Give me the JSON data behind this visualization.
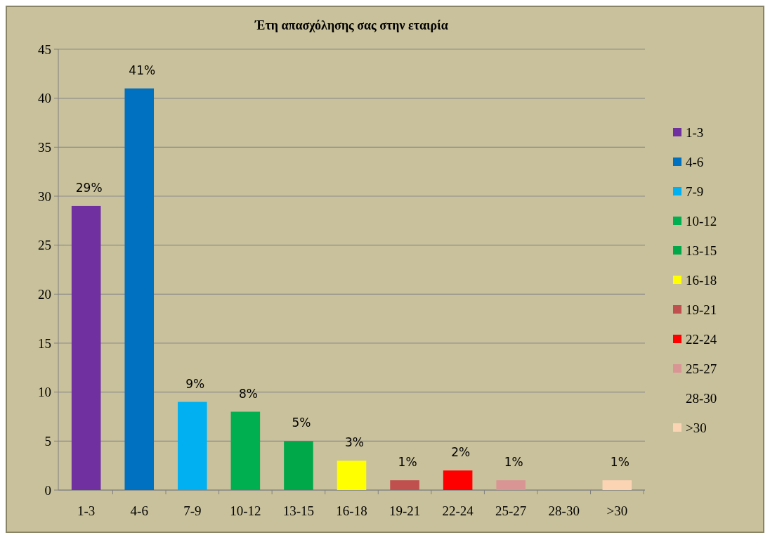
{
  "chart_data": {
    "type": "bar",
    "title": "Έτη απασχόλησης σας στην εταιρία",
    "categories": [
      "1-3",
      "4-6",
      "7-9",
      "10-12",
      "13-15",
      "16-18",
      "19-21",
      "22-24",
      "25-27",
      "28-30",
      ">30"
    ],
    "series": [
      {
        "name": "1-3",
        "color": "#7030a0",
        "values": [
          29,
          null,
          null,
          null,
          null,
          null,
          null,
          null,
          null,
          null,
          null
        ],
        "value_labels": [
          "29%",
          null,
          null,
          null,
          null,
          null,
          null,
          null,
          null,
          null,
          null
        ]
      },
      {
        "name": "4-6",
        "color": "#0070c0",
        "values": [
          null,
          41,
          null,
          null,
          null,
          null,
          null,
          null,
          null,
          null,
          null
        ],
        "value_labels": [
          null,
          "41%",
          null,
          null,
          null,
          null,
          null,
          null,
          null,
          null,
          null
        ]
      },
      {
        "name": "7-9",
        "color": "#00b0f0",
        "values": [
          null,
          null,
          9,
          null,
          null,
          null,
          null,
          null,
          null,
          null,
          null
        ],
        "value_labels": [
          null,
          null,
          "9%",
          null,
          null,
          null,
          null,
          null,
          null,
          null,
          null
        ]
      },
      {
        "name": "10-12",
        "color": "#00b050",
        "values": [
          null,
          null,
          null,
          8,
          null,
          null,
          null,
          null,
          null,
          null,
          null
        ],
        "value_labels": [
          null,
          null,
          null,
          "8%",
          null,
          null,
          null,
          null,
          null,
          null,
          null
        ]
      },
      {
        "name": "13-15",
        "color": "#00a84a",
        "values": [
          null,
          null,
          null,
          null,
          5,
          null,
          null,
          null,
          null,
          null,
          null
        ],
        "value_labels": [
          null,
          null,
          null,
          null,
          "5%",
          null,
          null,
          null,
          null,
          null,
          null
        ]
      },
      {
        "name": "16-18",
        "color": "#ffff00",
        "values": [
          null,
          null,
          null,
          null,
          null,
          3,
          null,
          null,
          null,
          null,
          null
        ],
        "value_labels": [
          null,
          null,
          null,
          null,
          null,
          "3%",
          null,
          null,
          null,
          null,
          null
        ]
      },
      {
        "name": "19-21",
        "color": "#c0504d",
        "values": [
          null,
          null,
          null,
          null,
          null,
          null,
          1,
          null,
          null,
          null,
          null
        ],
        "value_labels": [
          null,
          null,
          null,
          null,
          null,
          null,
          "1%",
          null,
          null,
          null,
          null
        ]
      },
      {
        "name": "22-24",
        "color": "#ff0000",
        "values": [
          null,
          null,
          null,
          null,
          null,
          null,
          null,
          2,
          null,
          null,
          null
        ],
        "value_labels": [
          null,
          null,
          null,
          null,
          null,
          null,
          null,
          "2%",
          null,
          null,
          null
        ]
      },
      {
        "name": "25-27",
        "color": "#d99594",
        "values": [
          null,
          null,
          null,
          null,
          null,
          null,
          null,
          null,
          1,
          null,
          null
        ],
        "value_labels": [
          null,
          null,
          null,
          null,
          null,
          null,
          null,
          null,
          "1%",
          null,
          null
        ]
      },
      {
        "name": "28-30",
        "values": [
          null,
          null,
          null,
          null,
          null,
          null,
          null,
          null,
          null,
          0,
          null
        ]
      },
      {
        "name": ">30",
        "color": "#fbd4b4",
        "values": [
          null,
          null,
          null,
          null,
          null,
          null,
          null,
          null,
          null,
          null,
          1
        ],
        "value_labels": [
          null,
          null,
          null,
          null,
          null,
          null,
          null,
          null,
          null,
          null,
          "1%"
        ]
      }
    ],
    "ylim": [
      0,
      45
    ],
    "yticks": [
      0,
      5,
      10,
      15,
      20,
      25,
      30,
      35,
      40,
      45
    ],
    "grid": "y",
    "legend": "right"
  }
}
